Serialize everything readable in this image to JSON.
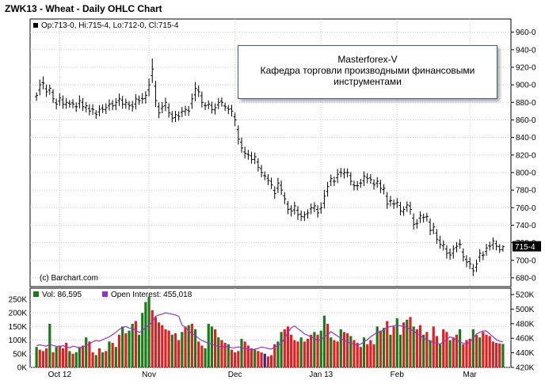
{
  "title": "ZWK13 - Wheat - Daily OHLC Chart",
  "annotation": {
    "line1": "Masterforex-V",
    "line2": "Кафедра торговли производными финансовыми",
    "line3": "инструментами"
  },
  "colors": {
    "price_bar": "#000000",
    "volume_up": "#1a7a1a",
    "volume_down": "#e02020",
    "volume_neutral": "#1f2a8f",
    "open_interest": "#9a30d0",
    "last_price_box": "#000000"
  },
  "chart_data": [
    {
      "type": "ohlc",
      "legend": {
        "label": "Op:713-0, Hi:715-4, Lo:712-0, Cl:715-4"
      },
      "source": "(c) Barchart.com",
      "last_price_label": "715-4",
      "ylim": [
        670,
        975
      ],
      "yticks": [
        "960-0",
        "940-0",
        "920-0",
        "900-0",
        "880-0",
        "860-0",
        "840-0",
        "820-0",
        "800-0",
        "780-0",
        "760-0",
        "740-0",
        "720-0",
        "700-0",
        "680-0"
      ],
      "ytick_values": [
        960,
        940,
        920,
        900,
        880,
        860,
        840,
        820,
        800,
        780,
        760,
        740,
        720,
        700,
        680
      ],
      "xtick_labels": [
        "Oct 12",
        "Nov",
        "Dec",
        "Jan 13",
        "Feb",
        "Mar"
      ],
      "xtick_index": [
        7,
        34,
        60,
        86,
        109,
        131
      ],
      "closes": [
        888,
        900,
        902,
        892,
        896,
        884,
        878,
        885,
        878,
        880,
        878,
        878,
        875,
        882,
        875,
        876,
        870,
        872,
        866,
        872,
        872,
        874,
        878,
        876,
        880,
        884,
        878,
        880,
        876,
        875,
        884,
        882,
        884,
        888,
        900,
        918,
        882,
        868,
        875,
        880,
        868,
        862,
        866,
        864,
        870,
        872,
        870,
        884,
        896,
        892,
        880,
        876,
        878,
        872,
        874,
        880,
        880,
        875,
        872,
        870,
        860,
        838,
        828,
        822,
        820,
        815,
        818,
        806,
        800,
        796,
        791,
        786,
        776,
        788,
        780,
        770,
        758,
        756,
        762,
        752,
        750,
        752,
        754,
        760,
        762,
        754,
        760,
        773,
        784,
        793,
        790,
        798,
        800,
        800,
        800,
        790,
        785,
        785,
        788,
        796,
        793,
        792,
        786,
        790,
        782,
        782,
        764,
        768,
        764,
        766,
        756,
        758,
        763,
        758,
        741,
        742,
        751,
        749,
        750,
        734,
        738,
        724,
        718,
        718,
        708,
        706,
        713,
        716,
        718,
        704,
        698,
        696,
        688,
        696,
        708,
        706,
        714,
        716,
        722,
        716,
        712,
        715.5
      ],
      "wick_up": [
        6,
        10,
        12,
        8,
        7,
        6,
        8,
        9,
        8,
        8,
        6,
        7,
        8,
        10,
        8,
        7,
        8,
        9,
        6,
        8,
        7,
        8,
        9,
        7,
        8,
        10,
        8,
        7,
        6,
        8,
        9,
        8,
        10,
        8,
        12,
        20,
        10,
        8,
        9,
        9,
        8,
        6,
        7,
        8,
        8,
        7,
        8,
        10,
        12,
        9,
        8,
        6,
        7,
        7,
        8,
        8,
        7,
        6,
        6,
        8,
        8,
        8,
        9,
        10,
        8,
        8,
        8,
        7,
        7,
        8,
        8,
        7,
        8,
        10,
        9,
        7,
        6,
        7,
        8,
        8,
        7,
        6,
        7,
        8,
        7,
        8,
        10,
        12,
        9,
        8,
        9,
        10,
        8,
        8,
        8,
        7,
        8,
        9,
        8,
        9,
        8,
        7,
        8,
        8,
        7,
        8,
        8,
        9,
        8,
        8,
        7,
        6,
        7,
        8,
        9,
        8,
        8,
        7,
        7,
        7,
        8,
        8,
        9,
        8,
        7,
        8,
        7,
        8,
        9,
        7,
        8,
        8,
        9,
        8,
        8,
        7,
        8,
        8,
        7,
        6,
        5,
        3
      ],
      "wick_down": [
        8,
        10,
        12,
        10,
        9,
        8,
        10,
        9,
        9,
        8,
        7,
        8,
        10,
        9,
        8,
        9,
        8,
        10,
        8,
        8,
        7,
        8,
        9,
        8,
        9,
        10,
        9,
        8,
        8,
        9,
        10,
        8,
        9,
        10,
        12,
        14,
        12,
        10,
        9,
        10,
        9,
        8,
        8,
        8,
        9,
        8,
        9,
        10,
        12,
        10,
        10,
        8,
        8,
        8,
        9,
        8,
        8,
        8,
        9,
        10,
        12,
        10,
        9,
        10,
        9,
        8,
        9,
        8,
        9,
        8,
        9,
        8,
        10,
        9,
        9,
        10,
        9,
        10,
        9,
        10,
        9,
        8,
        9,
        10,
        8,
        9,
        9,
        10,
        10,
        9,
        9,
        10,
        9,
        9,
        9,
        8,
        9,
        9,
        9,
        10,
        9,
        8,
        9,
        9,
        9,
        9,
        9,
        10,
        9,
        9,
        8,
        8,
        9,
        10,
        10,
        9,
        9,
        9,
        9,
        9,
        8,
        9,
        8,
        9,
        10,
        9,
        10,
        9,
        8,
        9,
        10,
        10,
        10,
        9,
        9,
        9,
        8,
        8,
        9,
        8,
        6,
        4
      ]
    },
    {
      "type": "bar",
      "legend": [
        {
          "label": "Vol: 86,595"
        },
        {
          "label": "Open Interest: 455,018"
        }
      ],
      "yticks_left": [
        "250K",
        "200K",
        "150K",
        "100K",
        "50K",
        "0K"
      ],
      "ytick_left_values": [
        250,
        200,
        150,
        100,
        50,
        0
      ],
      "yticks_right": [
        "520K",
        "500K",
        "480K",
        "460K",
        "440K",
        "420K"
      ],
      "ytick_right_values": [
        520,
        500,
        480,
        460,
        440,
        420
      ],
      "ylim_left": [
        0,
        250
      ],
      "ylim_right": [
        420,
        520
      ],
      "volume_k": [
        75,
        65,
        60,
        70,
        160,
        55,
        75,
        80,
        70,
        90,
        60,
        50,
        55,
        75,
        80,
        110,
        95,
        55,
        45,
        70,
        55,
        60,
        95,
        90,
        75,
        120,
        150,
        125,
        135,
        160,
        170,
        120,
        200,
        240,
        260,
        210,
        185,
        165,
        155,
        140,
        135,
        120,
        125,
        100,
        130,
        150,
        155,
        160,
        140,
        95,
        80,
        70,
        160,
        150,
        140,
        110,
        100,
        90,
        85,
        65,
        55,
        60,
        105,
        95,
        80,
        70,
        65,
        60,
        55,
        50,
        40,
        45,
        85,
        95,
        130,
        140,
        150,
        120,
        100,
        95,
        110,
        95,
        105,
        120,
        130,
        120,
        135,
        190,
        160,
        110,
        100,
        95,
        140,
        130,
        125,
        115,
        100,
        90,
        75,
        110,
        85,
        100,
        85,
        150,
        135,
        145,
        170,
        120,
        150,
        180,
        120,
        165,
        175,
        185,
        150,
        140,
        155,
        120,
        130,
        100,
        150,
        115,
        85,
        140,
        130,
        100,
        110,
        120,
        140,
        85,
        100,
        105,
        140,
        120,
        110,
        130,
        120,
        115,
        95,
        90,
        88,
        86
      ],
      "vol_color": [
        "u",
        "d",
        "d",
        "d",
        "u",
        "d",
        "u",
        "d",
        "d",
        "d",
        "u",
        "d",
        "u",
        "u",
        "d",
        "u",
        "d",
        "d",
        "u",
        "d",
        "u",
        "d",
        "u",
        "d",
        "u",
        "d",
        "u",
        "d",
        "u",
        "u",
        "d",
        "u",
        "u",
        "u",
        "u",
        "d",
        "d",
        "d",
        "d",
        "d",
        "d",
        "u",
        "d",
        "d",
        "u",
        "d",
        "u",
        "d",
        "u",
        "d",
        "d",
        "u",
        "u",
        "u",
        "d",
        "u",
        "d",
        "d",
        "u",
        "d",
        "d",
        "d",
        "u",
        "d",
        "d",
        "d",
        "u",
        "d",
        "d",
        "n",
        "d",
        "d",
        "d",
        "u",
        "u",
        "d",
        "d",
        "d",
        "d",
        "d",
        "u",
        "d",
        "d",
        "d",
        "u",
        "d",
        "u",
        "u",
        "d",
        "u",
        "d",
        "d",
        "u",
        "d",
        "d",
        "u",
        "d",
        "d",
        "d",
        "u",
        "d",
        "d",
        "d",
        "u",
        "d",
        "u",
        "d",
        "u",
        "d",
        "u",
        "u",
        "d",
        "u",
        "d",
        "u",
        "d",
        "d",
        "u",
        "d",
        "u",
        "d",
        "d",
        "u",
        "d",
        "d",
        "u",
        "d",
        "d",
        "u",
        "d",
        "d",
        "d",
        "u",
        "d",
        "u",
        "d",
        "d",
        "d",
        "d",
        "d",
        "d",
        "u"
      ],
      "open_interest_k": [
        450,
        451,
        450,
        449,
        452,
        450,
        449,
        448,
        450,
        448,
        447,
        449,
        448,
        447,
        448,
        450,
        452,
        455,
        457,
        456,
        458,
        460,
        462,
        465,
        468,
        472,
        475,
        476,
        474,
        473,
        471,
        468,
        470,
        475,
        478,
        482,
        490,
        492,
        493,
        495,
        494,
        493,
        492,
        490,
        478,
        475,
        470,
        466,
        464,
        460,
        457,
        455,
        453,
        452,
        450,
        449,
        448,
        449,
        448,
        447,
        447,
        448,
        447,
        446,
        445,
        444,
        445,
        446,
        448,
        447,
        446,
        445,
        448,
        450,
        453,
        460,
        468,
        474,
        477,
        473,
        470,
        466,
        464,
        462,
        460,
        457,
        458,
        462,
        465,
        469,
        466,
        463,
        460,
        457,
        455,
        453,
        452,
        450,
        452,
        455,
        458,
        462,
        465,
        468,
        469,
        472,
        475,
        476,
        477,
        478,
        477,
        476,
        475,
        472,
        470,
        466,
        464,
        460,
        458,
        456,
        454,
        453,
        452,
        455,
        458,
        462,
        460,
        457,
        455,
        453,
        452,
        455,
        460,
        466,
        468,
        470,
        470,
        466,
        462,
        458,
        456,
        455
      ]
    }
  ]
}
